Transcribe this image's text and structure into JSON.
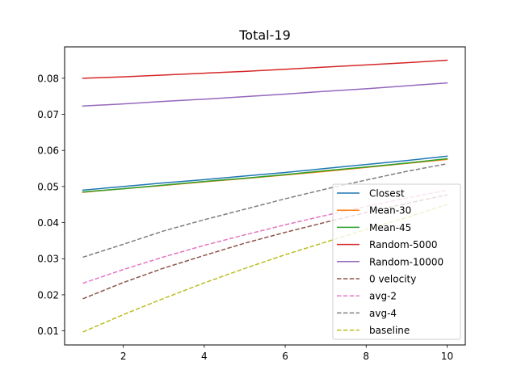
{
  "chart_data": {
    "type": "line",
    "title": "Total-19",
    "xlabel": "",
    "ylabel": "",
    "xlim": [
      0.55,
      10.45
    ],
    "ylim": [
      0.0061,
      0.0887
    ],
    "xticks": [
      2,
      4,
      6,
      8,
      10
    ],
    "yticks": [
      0.01,
      0.02,
      0.03,
      0.04,
      0.05,
      0.06,
      0.07,
      0.08
    ],
    "ytick_labels": [
      "0.01",
      "0.02",
      "0.03",
      "0.04",
      "0.05",
      "0.06",
      "0.07",
      "0.08"
    ],
    "grid": false,
    "legend_position": "lower-right",
    "x": [
      1,
      2,
      3,
      4,
      5,
      6,
      7,
      8,
      9,
      10
    ],
    "series": [
      {
        "name": "Closest",
        "color": "#1f77b4",
        "dash": "solid",
        "values": [
          0.049,
          0.05,
          0.051,
          0.0519,
          0.0529,
          0.0539,
          0.055,
          0.0561,
          0.0572,
          0.0584
        ]
      },
      {
        "name": "Mean-30",
        "color": "#ff7f0e",
        "dash": "solid",
        "values": [
          0.0484,
          0.0494,
          0.0503,
          0.0513,
          0.0522,
          0.0532,
          0.0542,
          0.0553,
          0.0564,
          0.0575
        ]
      },
      {
        "name": "Mean-45",
        "color": "#2ca02c",
        "dash": "solid",
        "values": [
          0.0485,
          0.0494,
          0.0504,
          0.0514,
          0.0523,
          0.0533,
          0.0544,
          0.0554,
          0.0565,
          0.0577
        ]
      },
      {
        "name": "Random-5000",
        "color": "#d62728",
        "dash": "solid",
        "values": [
          0.08,
          0.0804,
          0.0809,
          0.0814,
          0.0819,
          0.0825,
          0.0831,
          0.0837,
          0.0843,
          0.085
        ]
      },
      {
        "name": "Random-10000",
        "color": "#9467bd",
        "dash": "solid",
        "values": [
          0.0723,
          0.0729,
          0.0736,
          0.0742,
          0.0749,
          0.0756,
          0.0764,
          0.0771,
          0.0779,
          0.0787
        ]
      },
      {
        "name": "0 velocity",
        "color": "#8c564b",
        "dash": "dashed",
        "values": [
          0.0189,
          0.0234,
          0.0274,
          0.0309,
          0.0343,
          0.0373,
          0.0401,
          0.0428,
          0.0453,
          0.0477
        ]
      },
      {
        "name": "avg-2",
        "color": "#e377c2",
        "dash": "dashed",
        "values": [
          0.0232,
          0.027,
          0.0305,
          0.0337,
          0.0366,
          0.0394,
          0.042,
          0.0445,
          0.0468,
          0.049
        ]
      },
      {
        "name": "avg-4",
        "color": "#7f7f7f",
        "dash": "dashed",
        "values": [
          0.0304,
          0.034,
          0.0377,
          0.0408,
          0.0437,
          0.0466,
          0.0493,
          0.0518,
          0.0542,
          0.0563
        ]
      },
      {
        "name": "baseline",
        "color": "#bcbd22",
        "dash": "dashed",
        "values": [
          0.0097,
          0.0145,
          0.019,
          0.0233,
          0.0273,
          0.0311,
          0.0346,
          0.0381,
          0.0414,
          0.045
        ]
      }
    ]
  }
}
